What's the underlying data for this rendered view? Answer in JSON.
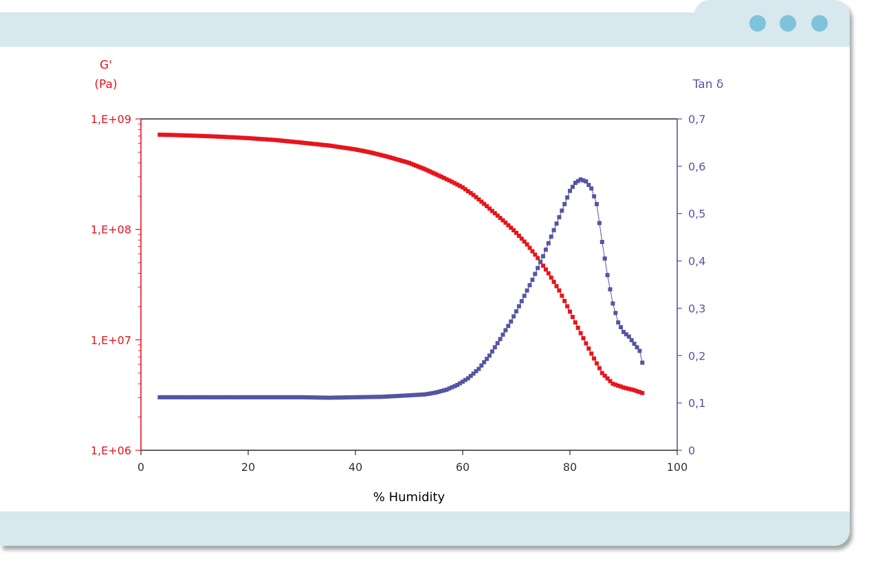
{
  "window": {
    "controls": [
      "dot-1",
      "dot-2",
      "dot-3"
    ],
    "colors": {
      "bar": "#d7e8ef",
      "dot": "#7ec3da"
    }
  },
  "chart_data": {
    "type": "scatter",
    "title": "",
    "xlabel": "% Humidity",
    "xlim": [
      0,
      100
    ],
    "x_ticks": [
      "0",
      "20",
      "40",
      "60",
      "80",
      "100"
    ],
    "y_left": {
      "label_line1": "G'",
      "label_line2": "(Pa)",
      "scale": "log",
      "lim": [
        1000000,
        1000000000
      ],
      "ticks": [
        "1,E+06",
        "1,E+07",
        "1,E+08",
        "1,E+09"
      ],
      "color": "#e8141c"
    },
    "y_right": {
      "label": "Tan δ",
      "scale": "linear",
      "lim": [
        0,
        0.7
      ],
      "ticks": [
        "0",
        "0,1",
        "0,2",
        "0,3",
        "0,4",
        "0,5",
        "0,6",
        "0,7"
      ],
      "color": "#5555a4"
    },
    "grid": false,
    "legend": "none",
    "series": [
      {
        "axis": "left",
        "color": "#e8141c",
        "x": [
          3.5,
          6,
          10,
          15,
          20,
          25,
          30,
          35,
          40,
          43,
          46,
          50,
          53,
          56,
          58,
          60,
          62,
          64,
          66,
          68,
          70,
          72,
          74,
          76,
          78,
          80,
          82,
          84,
          86,
          88,
          90,
          92,
          93.5
        ],
        "y": [
          720000000,
          715000000,
          705000000,
          690000000,
          670000000,
          645000000,
          610000000,
          575000000,
          530000000,
          495000000,
          455000000,
          400000000,
          350000000,
          300000000,
          270000000,
          240000000,
          205000000,
          170000000,
          140000000,
          115000000,
          93000000,
          73000000,
          55000000,
          40000000,
          28000000,
          18000000,
          11500000,
          7500000,
          5000000,
          4000000,
          3700000,
          3500000,
          3300000
        ]
      },
      {
        "axis": "right",
        "color": "#5555a4",
        "x": [
          3.5,
          6,
          10,
          15,
          20,
          25,
          30,
          35,
          40,
          45,
          50,
          53,
          55,
          57,
          59,
          61,
          63,
          65,
          67,
          69,
          71,
          73,
          75,
          77,
          79,
          80,
          81,
          82,
          83,
          84,
          85,
          86,
          87,
          88,
          89,
          90,
          91,
          92,
          93,
          93.5
        ],
        "y": [
          0.112,
          0.112,
          0.112,
          0.112,
          0.112,
          0.112,
          0.112,
          0.111,
          0.112,
          0.113,
          0.116,
          0.118,
          0.122,
          0.128,
          0.138,
          0.152,
          0.172,
          0.2,
          0.235,
          0.272,
          0.315,
          0.36,
          0.41,
          0.465,
          0.52,
          0.548,
          0.565,
          0.572,
          0.568,
          0.553,
          0.52,
          0.44,
          0.37,
          0.31,
          0.27,
          0.25,
          0.24,
          0.225,
          0.21,
          0.185
        ]
      }
    ]
  }
}
